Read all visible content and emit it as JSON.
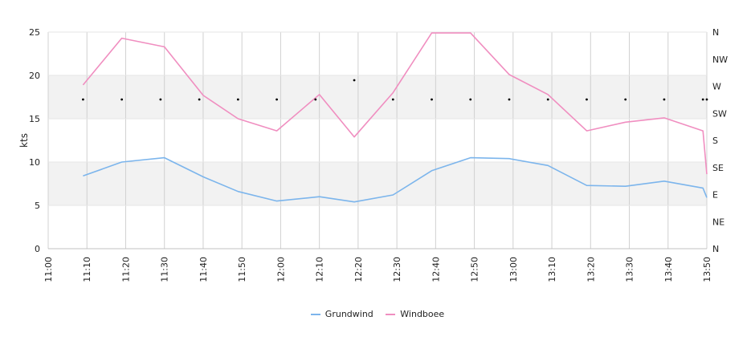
{
  "chart_data": {
    "type": "line",
    "ylabel": "kts",
    "ylim": [
      0,
      25
    ],
    "yticks": [
      "0",
      "5",
      "10",
      "15",
      "20",
      "25"
    ],
    "x_ticks": [
      "11:00",
      "11:10",
      "11:20",
      "11:30",
      "11:40",
      "11:50",
      "12:00",
      "12:10",
      "12:20",
      "12:30",
      "12:40",
      "12:50",
      "13:00",
      "13:10",
      "13:20",
      "13:30",
      "13:40",
      "13:50"
    ],
    "xlim_minutes": [
      0,
      170
    ],
    "bands": [
      [
        5,
        10
      ],
      [
        15,
        20
      ]
    ],
    "direction_axis": {
      "labels": [
        "N",
        "NE",
        "E",
        "SE",
        "S",
        "SW",
        "W",
        "NW",
        "N"
      ],
      "range_deg": [
        0,
        360
      ]
    },
    "x": [
      "11:09",
      "11:19",
      "11:30",
      "11:40",
      "11:49",
      "11:59",
      "12:10",
      "12:19",
      "12:29",
      "12:39",
      "12:49",
      "12:59",
      "13:09",
      "13:19",
      "13:29",
      "13:39",
      "13:49",
      "13:50"
    ],
    "series": [
      {
        "name": "Grundwind",
        "color": "#7cb5ec",
        "values": [
          8.4,
          10.0,
          10.5,
          8.3,
          6.6,
          5.5,
          6.0,
          5.4,
          6.2,
          9.0,
          10.5,
          10.4,
          9.6,
          7.3,
          7.2,
          7.8,
          7.0,
          5.9
        ]
      },
      {
        "name": "Windboee",
        "color": "#f08ec0",
        "values": [
          18.9,
          24.3,
          23.3,
          17.7,
          15.0,
          13.6,
          17.8,
          12.9,
          18.0,
          24.9,
          24.9,
          20.1,
          17.8,
          13.6,
          14.6,
          15.1,
          13.6,
          8.6
        ]
      }
    ],
    "direction": {
      "x": [
        "11:09",
        "11:19",
        "11:29",
        "11:39",
        "11:49",
        "11:59",
        "12:09",
        "12:19",
        "12:29",
        "12:39",
        "12:49",
        "12:59",
        "13:09",
        "13:19",
        "13:29",
        "13:39",
        "13:49",
        "13:50"
      ],
      "values": [
        248,
        248,
        248,
        248,
        248,
        248,
        248,
        280,
        248,
        248,
        248,
        248,
        248,
        248,
        248,
        248,
        248,
        248
      ]
    },
    "legend": [
      "Grundwind",
      "Windboee"
    ],
    "legend_position": "bottom-center",
    "grid": true
  }
}
